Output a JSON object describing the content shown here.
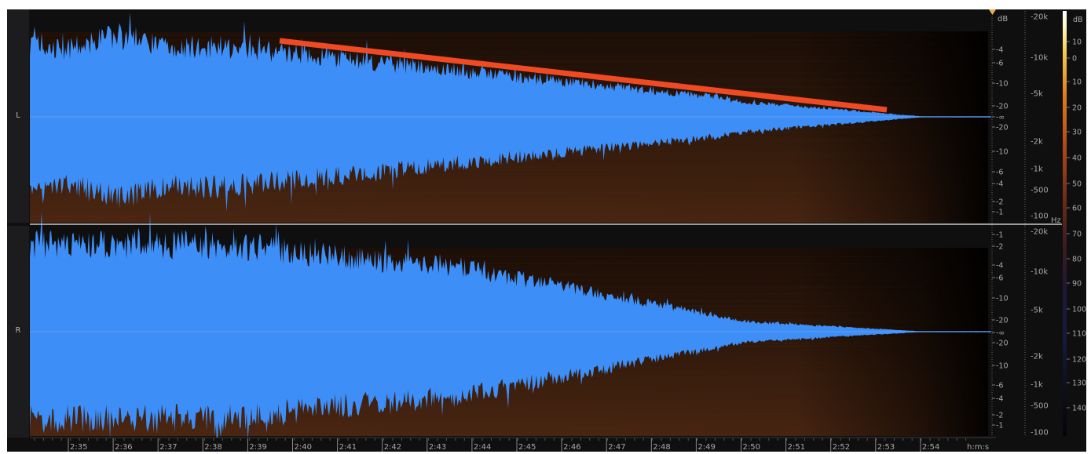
{
  "channels": {
    "left_label": "L",
    "right_label": "R"
  },
  "db_scale": {
    "unit": "dB",
    "left_ticks": [
      "-4",
      "-6",
      "-10",
      "-20",
      "-∞",
      "-20",
      "-10",
      "-6",
      "-4",
      "-2",
      "-1"
    ],
    "right_ticks": [
      "-1",
      "-2",
      "-4",
      "-6",
      "-10",
      "-20",
      "-∞",
      "-20",
      "-10",
      "-6",
      "-4",
      "-2",
      "-1"
    ]
  },
  "freq_scale": {
    "unit": "Hz",
    "left_ticks": [
      "-20k",
      "-10k",
      "-5k",
      "-2k",
      "-1k",
      "-500",
      "-100"
    ],
    "right_ticks": [
      "-20k",
      "-10k",
      "-5k",
      "-2k",
      "-1k",
      "-500",
      "-100"
    ]
  },
  "color_scale": {
    "unit": "dB",
    "ticks": [
      "10",
      "0",
      "10",
      "20",
      "30",
      "40",
      "50",
      "60",
      "70",
      "80",
      "90",
      "100",
      "110",
      "120",
      "130",
      "140"
    ]
  },
  "timeline": {
    "unit": "h:m:s",
    "ticks": [
      "2:35",
      "2:36",
      "2:37",
      "2:38",
      "2:39",
      "2:40",
      "2:41",
      "2:42",
      "2:43",
      "2:44",
      "2:45",
      "2:46",
      "2:47",
      "2:48",
      "2:49",
      "2:50",
      "2:51",
      "2:52",
      "2:53",
      "2:54"
    ]
  },
  "colors": {
    "waveform": "#3d8ef7",
    "annotation": "#f04a23",
    "playhead_marker": "#e8b04a",
    "spectrogram": "#3a1e10",
    "background": "#0f0f10"
  },
  "annotation": {
    "type": "decay-trend-line"
  }
}
